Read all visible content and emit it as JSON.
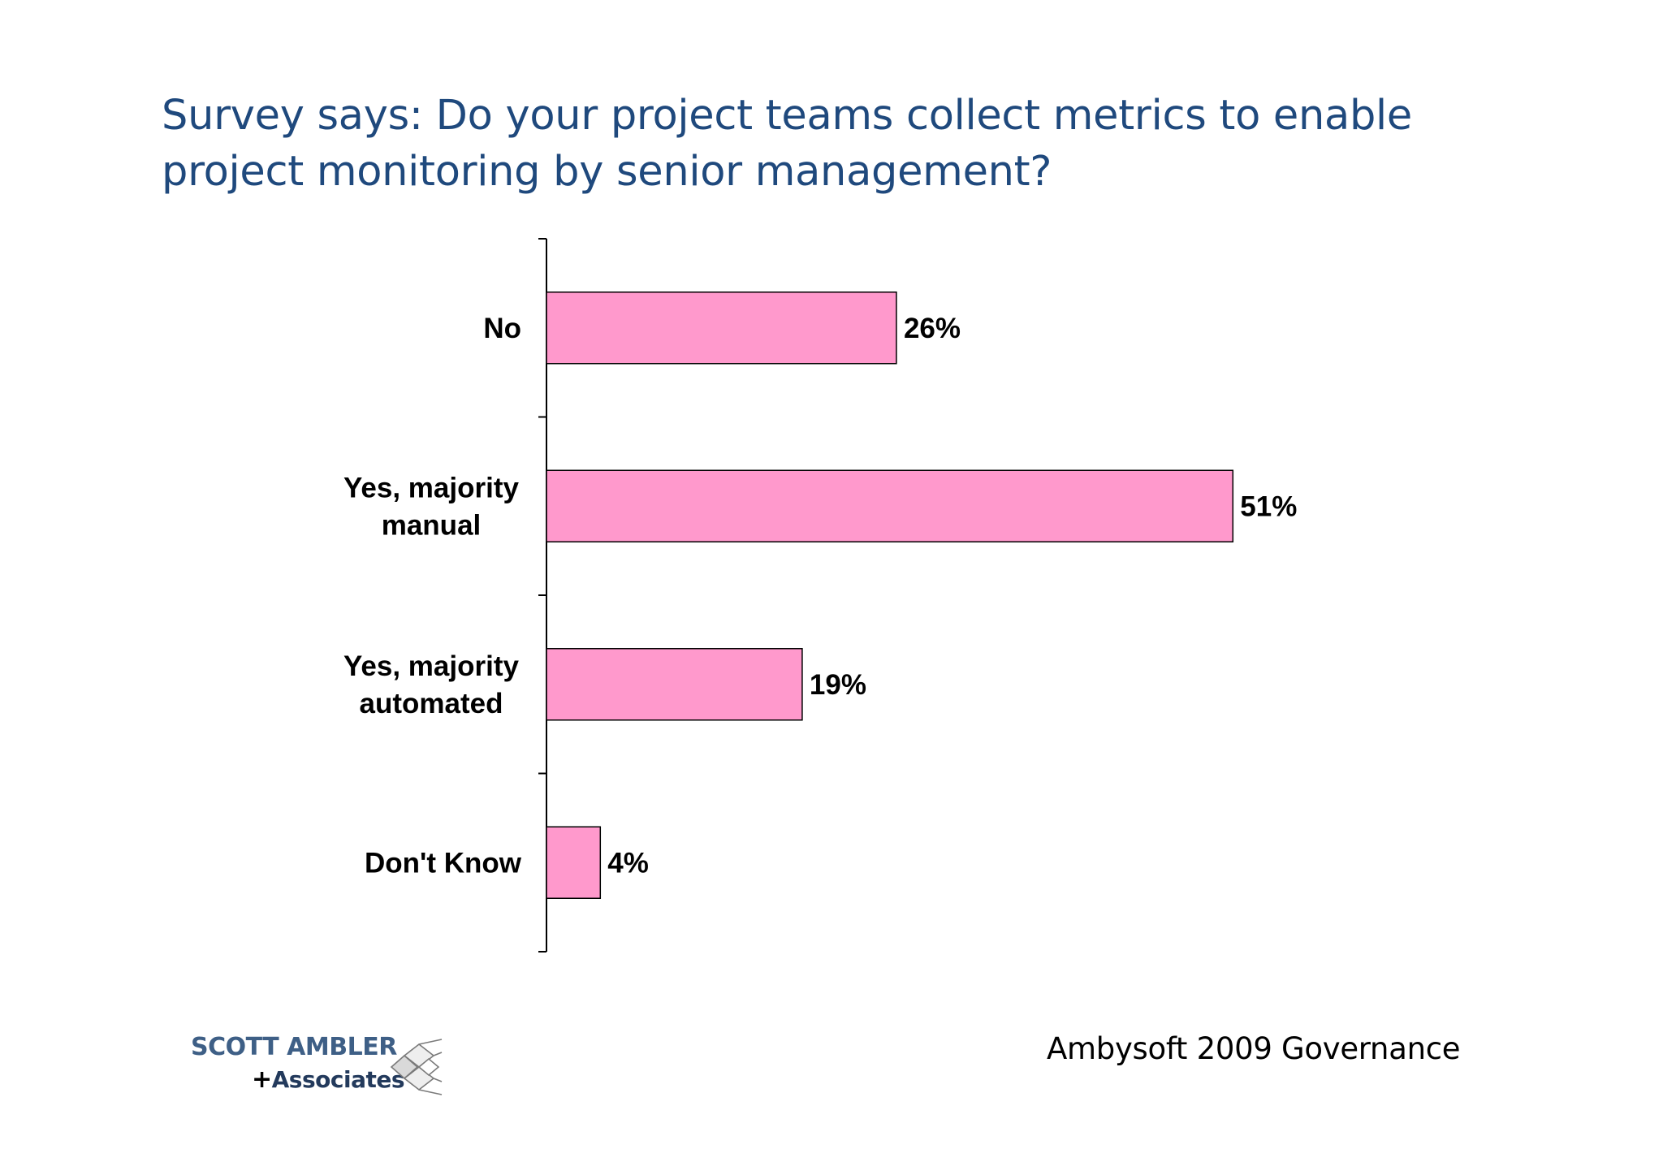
{
  "title": {
    "line1": "Survey says: Do your project teams collect metrics to enable",
    "line2": "project monitoring by senior management?"
  },
  "chart_data": {
    "type": "bar",
    "orientation": "horizontal",
    "categories": [
      [
        "No"
      ],
      [
        "Yes, majority",
        "manual"
      ],
      [
        "Yes, majority",
        "automated"
      ],
      [
        "Don't Know"
      ]
    ],
    "values": [
      26,
      51,
      19,
      4
    ],
    "value_labels": [
      "26%",
      "51%",
      "19%",
      "4%"
    ],
    "unit": "%",
    "bar_color": "#ff99cc",
    "bar_border_color": "#000000",
    "grid": false,
    "legend": "none"
  },
  "logo": {
    "line1": "SCOTT AMBLER",
    "plus": "+",
    "line2": "Associates"
  },
  "footer": {
    "source": "Ambysoft 2009 Governance"
  }
}
